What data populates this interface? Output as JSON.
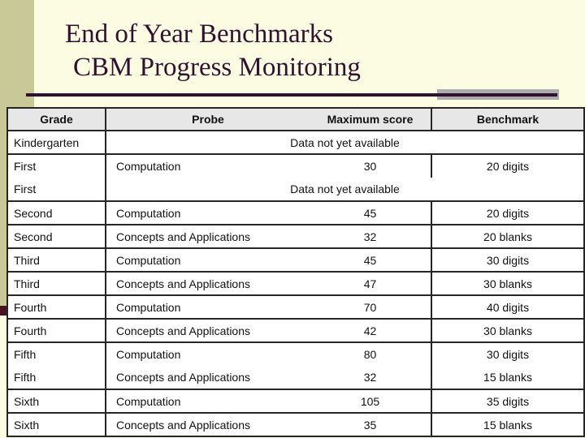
{
  "slide": {
    "title_line1": "End of Year Benchmarks",
    "title_line2": "CBM Progress Monitoring"
  },
  "colors": {
    "background": "#FCFCE2",
    "band": "#C9C897",
    "accent_square": "#4A1220",
    "title": "#321031",
    "rule": "#321031",
    "gray_bar": "#ACACAC",
    "header_bg": "#E7E7E7",
    "table_border": "#262626",
    "table_bg": "#FFFFFF",
    "text": "#111111"
  },
  "table": {
    "headers": [
      "Grade",
      "Probe",
      "Maximum score",
      "Benchmark"
    ],
    "rows": [
      {
        "grade": "Kindergarten",
        "span": "Data not yet available"
      },
      {
        "grade": "First",
        "probe": "Computation",
        "max": "30",
        "benchmark": "20 digits"
      },
      {
        "grade": "First",
        "span": "Data not yet available"
      },
      {
        "grade": "Second",
        "probe": "Computation",
        "max": "45",
        "benchmark": "20 digits"
      },
      {
        "grade": "Second",
        "probe": "Concepts and Applications",
        "max": "32",
        "benchmark": "20 blanks"
      },
      {
        "grade": "Third",
        "probe": "Computation",
        "max": "45",
        "benchmark": "30 digits"
      },
      {
        "grade": "Third",
        "probe": "Concepts and Applications",
        "max": "47",
        "benchmark": "30 blanks"
      },
      {
        "grade": "Fourth",
        "probe": "Computation",
        "max": "70",
        "benchmark": "40 digits"
      },
      {
        "grade": "Fourth",
        "probe": "Concepts and Applications",
        "max": "42",
        "benchmark": "30 blanks"
      },
      {
        "grade": "Fifth",
        "probe": "Computation",
        "max": "80",
        "benchmark": "30 digits"
      },
      {
        "grade": "Fifth",
        "probe": "Concepts and Applications",
        "max": "32",
        "benchmark": "15 blanks"
      },
      {
        "grade": "Sixth",
        "probe": "Computation",
        "max": "105",
        "benchmark": "35 digits"
      },
      {
        "grade": "Sixth",
        "probe": "Concepts and Applications",
        "max": "35",
        "benchmark": "15 blanks"
      }
    ]
  }
}
